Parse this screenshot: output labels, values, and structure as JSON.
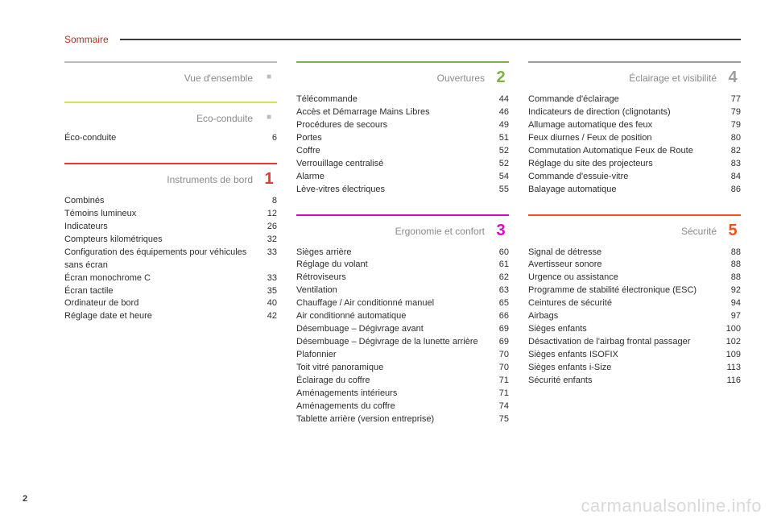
{
  "header": {
    "title": "Sommaire"
  },
  "page_number": "2",
  "watermark": "carmanualsonline.info",
  "columns": [
    {
      "sections": [
        {
          "rule_color": "#bdbdbd",
          "title": "Vue d'ensemble",
          "marker_type": "dot",
          "entries": []
        },
        {
          "rule_color": "#d4e157",
          "title": "Eco-conduite",
          "marker_type": "dot",
          "entries": [
            {
              "label": "Éco-conduite",
              "page": "6"
            }
          ]
        },
        {
          "rule_color": "#e53935",
          "title": "Instruments de bord",
          "marker_type": "num",
          "marker_value": "1",
          "marker_color": "#e53935",
          "entries": [
            {
              "label": "Combinés",
              "page": "8"
            },
            {
              "label": "Témoins lumineux",
              "page": "12"
            },
            {
              "label": "Indicateurs",
              "page": "26"
            },
            {
              "label": "Compteurs kilométriques",
              "page": "32"
            },
            {
              "label": "Configuration des équipements pour véhicules sans écran",
              "page": "33"
            },
            {
              "label": "Écran monochrome C",
              "page": "33"
            },
            {
              "label": "Écran tactile",
              "page": "35"
            },
            {
              "label": "Ordinateur de bord",
              "page": "40"
            },
            {
              "label": "Réglage date et heure",
              "page": "42"
            }
          ]
        }
      ]
    },
    {
      "sections": [
        {
          "rule_color": "#7cb342",
          "title": "Ouvertures",
          "marker_type": "num",
          "marker_value": "2",
          "marker_color": "#7cb342",
          "entries": [
            {
              "label": "Télécommande",
              "page": "44"
            },
            {
              "label": "Accès et Démarrage Mains Libres",
              "page": "46"
            },
            {
              "label": "Procédures de secours",
              "page": "49"
            },
            {
              "label": "Portes",
              "page": "51"
            },
            {
              "label": "Coffre",
              "page": "52"
            },
            {
              "label": "Verrouillage centralisé",
              "page": "52"
            },
            {
              "label": "Alarme",
              "page": "54"
            },
            {
              "label": "Lève-vitres électriques",
              "page": "55"
            }
          ]
        },
        {
          "rule_color": "#e000c3",
          "title": "Ergonomie et confort",
          "marker_type": "num",
          "marker_value": "3",
          "marker_color": "#e000c3",
          "entries": [
            {
              "label": "Sièges arrière",
              "page": "60"
            },
            {
              "label": "Réglage du volant",
              "page": "61"
            },
            {
              "label": "Rétroviseurs",
              "page": "62"
            },
            {
              "label": "Ventilation",
              "page": "63"
            },
            {
              "label": "Chauffage / Air conditionné manuel",
              "page": "65"
            },
            {
              "label": "Air conditionné automatique",
              "page": "66"
            },
            {
              "label": "Désembuage – Dégivrage avant",
              "page": "69"
            },
            {
              "label": "Désembuage – Dégivrage de la lunette arrière",
              "page": "69"
            },
            {
              "label": "Plafonnier",
              "page": "70"
            },
            {
              "label": "Toit vitré panoramique",
              "page": "70"
            },
            {
              "label": "Éclairage du coffre",
              "page": "71"
            },
            {
              "label": "Aménagements intérieurs",
              "page": "71"
            },
            {
              "label": "Aménagements du coffre",
              "page": "74"
            },
            {
              "label": "Tablette arrière (version entreprise)",
              "page": "75"
            }
          ]
        }
      ]
    },
    {
      "sections": [
        {
          "rule_color": "#9e9e9e",
          "title": "Éclairage et visibilité",
          "marker_type": "num",
          "marker_value": "4",
          "marker_color": "#9e9e9e",
          "entries": [
            {
              "label": "Commande d'éclairage",
              "page": "77"
            },
            {
              "label": "Indicateurs de direction (clignotants)",
              "page": "79"
            },
            {
              "label": "Allumage automatique des feux",
              "page": "79"
            },
            {
              "label": "Feux diurnes / Feux de position",
              "page": "80"
            },
            {
              "label": "Commutation Automatique Feux de Route",
              "page": "82"
            },
            {
              "label": "Réglage du site des projecteurs",
              "page": "83"
            },
            {
              "label": "Commande d'essuie-vitre",
              "page": "84"
            },
            {
              "label": "Balayage automatique",
              "page": "86"
            }
          ]
        },
        {
          "rule_color": "#f4511e",
          "title": "Sécurité",
          "marker_type": "num",
          "marker_value": "5",
          "marker_color": "#f4511e",
          "entries": [
            {
              "label": "Signal de détresse",
              "page": "88"
            },
            {
              "label": "Avertisseur sonore",
              "page": "88"
            },
            {
              "label": "Urgence ou assistance",
              "page": "88"
            },
            {
              "label": "Programme de stabilité électronique (ESC)",
              "page": "92"
            },
            {
              "label": "Ceintures de sécurité",
              "page": "94"
            },
            {
              "label": "Airbags",
              "page": "97"
            },
            {
              "label": "Sièges enfants",
              "page": "100"
            },
            {
              "label": "Désactivation de l'airbag frontal passager",
              "page": "102"
            },
            {
              "label": "Sièges enfants ISOFIX",
              "page": "109"
            },
            {
              "label": "Sièges enfants i-Size",
              "page": "113"
            },
            {
              "label": "Sécurité enfants",
              "page": "116"
            }
          ]
        }
      ]
    }
  ]
}
